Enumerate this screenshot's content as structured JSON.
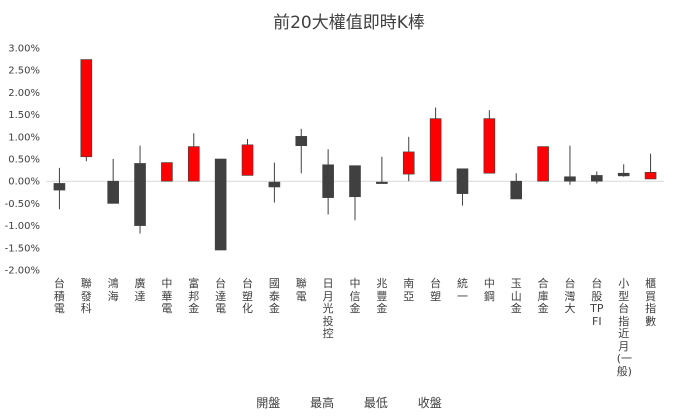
{
  "chart_data": {
    "type": "candlestick",
    "title": "前20大權值即時K棒",
    "legend": [
      "開盤",
      "最高",
      "最低",
      "收盤"
    ],
    "y_axis": {
      "min": -0.02,
      "max": 0.03,
      "step": 0.005,
      "tick_labels": [
        "3.00%",
        "2.50%",
        "2.00%",
        "1.50%",
        "1.00%",
        "0.50%",
        "0.00%",
        "-0.50%",
        "-1.00%",
        "-1.50%",
        "-2.00%"
      ]
    },
    "colors": {
      "up": "#ff0000",
      "down": "#404040",
      "axis": "#d9d9d9",
      "wick": "#404040"
    },
    "categories": [
      "台積電",
      "聯發科",
      "鴻海",
      "廣達",
      "中華電",
      "富邦金",
      "台達電",
      "台塑化",
      "國泰金",
      "聯電",
      "日月光投控",
      "中信金",
      "兆豐金",
      "南亞",
      "台塑",
      "統一",
      "中鋼",
      "玉山金",
      "合庫金",
      "台灣大",
      "台股TPFI",
      "小型台指近月(一般)",
      "櫃買指數"
    ],
    "series": [
      {
        "name": "台積電",
        "open": -0.0005,
        "high": 0.003,
        "low": -0.0063,
        "close": -0.002
      },
      {
        "name": "聯發科",
        "open": 0.0055,
        "high": 0.0274,
        "low": 0.0045,
        "close": 0.0274
      },
      {
        "name": "鴻海",
        "open": 0.0,
        "high": 0.005,
        "low": -0.005,
        "close": -0.005
      },
      {
        "name": "廣達",
        "open": 0.004,
        "high": 0.008,
        "low": -0.0118,
        "close": -0.01
      },
      {
        "name": "中華電",
        "open": 0.0,
        "high": 0.0042,
        "low": 0.0,
        "close": 0.0042
      },
      {
        "name": "富邦金",
        "open": 0.0,
        "high": 0.0108,
        "low": 0.0,
        "close": 0.0078
      },
      {
        "name": "台達電",
        "open": 0.005,
        "high": 0.005,
        "low": -0.0155,
        "close": -0.0155
      },
      {
        "name": "台塑化",
        "open": 0.0013,
        "high": 0.0095,
        "low": 0.0013,
        "close": 0.0082
      },
      {
        "name": "國泰金",
        "open": -0.0002,
        "high": 0.0042,
        "low": -0.0048,
        "close": -0.0013
      },
      {
        "name": "聯電",
        "open": 0.0101,
        "high": 0.0118,
        "low": 0.0018,
        "close": 0.008
      },
      {
        "name": "日月光投控",
        "open": 0.0037,
        "high": 0.0072,
        "low": -0.0075,
        "close": -0.0037
      },
      {
        "name": "中信金",
        "open": 0.0035,
        "high": 0.0035,
        "low": -0.0088,
        "close": -0.0035
      },
      {
        "name": "兆豐金",
        "open": -0.0002,
        "high": 0.0055,
        "low": -0.0005,
        "close": -0.0005
      },
      {
        "name": "南亞",
        "open": 0.0016,
        "high": 0.01,
        "low": 0.0,
        "close": 0.0066
      },
      {
        "name": "台塑",
        "open": 0.0,
        "high": 0.0166,
        "low": 0.0,
        "close": 0.0141
      },
      {
        "name": "統一",
        "open": 0.0028,
        "high": 0.0028,
        "low": -0.0055,
        "close": -0.0028
      },
      {
        "name": "中鋼",
        "open": 0.0018,
        "high": 0.016,
        "low": 0.0018,
        "close": 0.0141
      },
      {
        "name": "玉山金",
        "open": 0.0,
        "high": 0.0018,
        "low": -0.004,
        "close": -0.004
      },
      {
        "name": "合庫金",
        "open": 0.0,
        "high": 0.0078,
        "low": 0.0,
        "close": 0.0078
      },
      {
        "name": "台灣大",
        "open": 0.001,
        "high": 0.008,
        "low": -0.0008,
        "close": 0.0
      },
      {
        "name": "台股TPFI",
        "open": 0.0013,
        "high": 0.0022,
        "low": -0.0005,
        "close": 0.0
      },
      {
        "name": "小型台指近月(一般)",
        "open": 0.0018,
        "high": 0.0038,
        "low": 0.001,
        "close": 0.0012
      },
      {
        "name": "櫃買指數",
        "open": 0.0005,
        "high": 0.0062,
        "low": 0.0005,
        "close": 0.002
      }
    ]
  }
}
